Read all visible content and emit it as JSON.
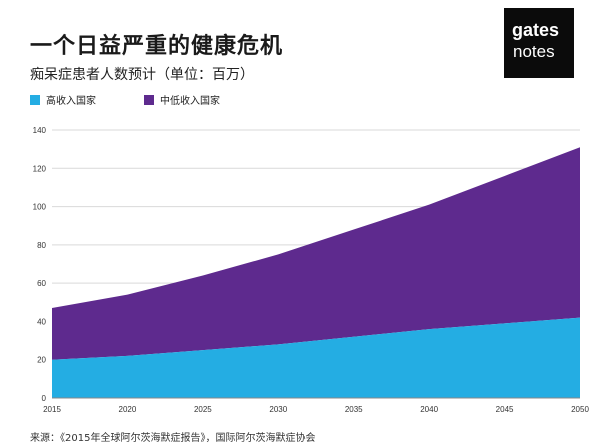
{
  "header": {
    "title": "一个日益严重的健康危机",
    "subtitle": "痴呆症患者人数预计（单位：百万）"
  },
  "logo": {
    "line1": "gates",
    "line2": "notes"
  },
  "legend": [
    {
      "label": "高收入国家",
      "color": "#24ADE3"
    },
    {
      "label": "中低收入国家",
      "color": "#5E2A8E"
    }
  ],
  "source": "来源：《2015年全球阿尔茨海默症报告》，国际阿尔茨海默症协会",
  "chart_data": {
    "type": "area",
    "stacked": true,
    "title": "痴呆症患者人数预计（单位：百万）",
    "x": [
      2015,
      2020,
      2025,
      2030,
      2035,
      2040,
      2045,
      2050
    ],
    "x_ticks": [
      "2015",
      "2020",
      "2025",
      "2030",
      "2035",
      "2040",
      "2045",
      "2050"
    ],
    "y_ticks": [
      "0",
      "20",
      "40",
      "60",
      "80",
      "100",
      "120",
      "140"
    ],
    "ylim": [
      0,
      140
    ],
    "series": [
      {
        "name": "高收入国家",
        "color": "#24ADE3",
        "values": [
          20,
          22,
          25,
          28,
          32,
          36,
          39,
          42
        ]
      },
      {
        "name": "中低收入国家",
        "color": "#5E2A8E",
        "values": [
          27,
          32,
          39,
          47,
          56,
          65,
          77,
          89
        ]
      }
    ],
    "grid": true
  }
}
